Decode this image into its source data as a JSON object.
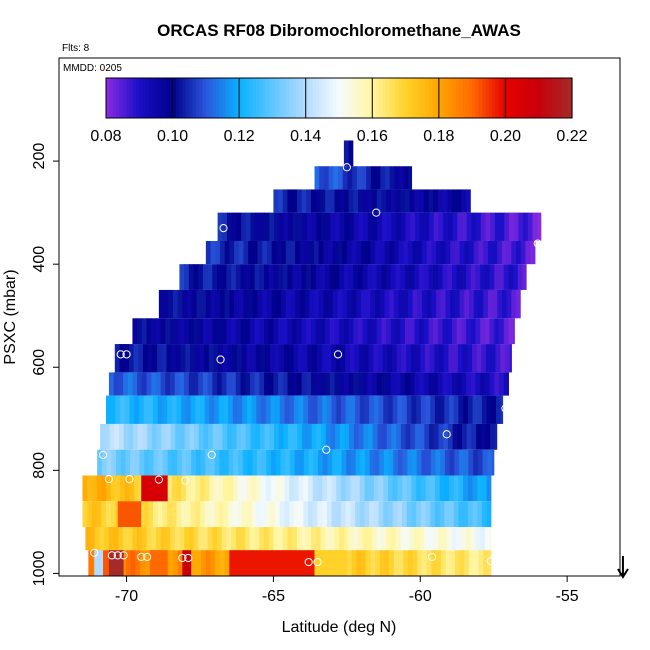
{
  "chart_data": {
    "type": "heatmap",
    "title": "ORCAS RF08 Dibromochloromethane_AWAS",
    "flights_label": "Flts: 8",
    "date_label": "MMDD: 0205",
    "xlabel": "Latitude (deg N)",
    "ylabel": "PSXC (mbar)",
    "xlim": [
      -72.3,
      -53.2
    ],
    "ylim": [
      1005,
      0
    ],
    "x_ticks": [
      -70,
      -65,
      -60,
      -55
    ],
    "x_tick_labels": [
      "-70",
      "-65",
      "-60",
      "-55"
    ],
    "y_ticks": [
      200,
      400,
      600,
      800,
      1000
    ],
    "y_tick_labels": [
      "200",
      "400",
      "600",
      "800",
      "1000"
    ],
    "colorbar": {
      "min": 0.08,
      "max": 0.22,
      "ticks": [
        0.08,
        0.1,
        0.12,
        0.14,
        0.16,
        0.18,
        0.2,
        0.22
      ],
      "tick_labels": [
        "0.08",
        "0.10",
        "0.12",
        "0.14",
        "0.16",
        "0.18",
        "0.20",
        "0.22"
      ],
      "stops": [
        {
          "v": 0.08,
          "color": "#8a2be2"
        },
        {
          "v": 0.09,
          "color": "#1a0fc8"
        },
        {
          "v": 0.1,
          "color": "#00008b"
        },
        {
          "v": 0.11,
          "color": "#2a56dc"
        },
        {
          "v": 0.12,
          "color": "#0ab0ff"
        },
        {
          "v": 0.14,
          "color": "#b4dcff"
        },
        {
          "v": 0.15,
          "color": "#f5fbff"
        },
        {
          "v": 0.16,
          "color": "#fff6a0"
        },
        {
          "v": 0.17,
          "color": "#ffd22a"
        },
        {
          "v": 0.18,
          "color": "#ffa600"
        },
        {
          "v": 0.19,
          "color": "#ff6a00"
        },
        {
          "v": 0.2,
          "color": "#e60000"
        },
        {
          "v": 0.21,
          "color": "#c8000a"
        },
        {
          "v": 0.22,
          "color": "#a52a2a"
        }
      ]
    },
    "rows": [
      {
        "p_top": 160,
        "p_bottom": 210,
        "lat_start": -62.6,
        "lat_end": -62.3,
        "v_start": 0.1,
        "v_end": 0.1
      },
      {
        "p_top": 210,
        "p_bottom": 255,
        "lat_start": -63.6,
        "lat_end": -60.3,
        "v_start": 0.112,
        "v_end": 0.098
      },
      {
        "p_top": 255,
        "p_bottom": 300,
        "lat_start": -65.0,
        "lat_end": -58.3,
        "v_start": 0.104,
        "v_end": 0.096
      },
      {
        "p_top": 300,
        "p_bottom": 355,
        "lat_start": -66.9,
        "lat_end": -55.9,
        "v_start": 0.103,
        "v_end": 0.084
      },
      {
        "p_top": 355,
        "p_bottom": 400,
        "lat_start": -67.3,
        "lat_end": -56.1,
        "v_start": 0.106,
        "v_end": 0.085
      },
      {
        "p_top": 400,
        "p_bottom": 450,
        "lat_start": -68.2,
        "lat_end": -56.4,
        "v_start": 0.104,
        "v_end": 0.087
      },
      {
        "p_top": 450,
        "p_bottom": 505,
        "lat_start": -68.9,
        "lat_end": -56.6,
        "v_start": 0.101,
        "v_end": 0.086
      },
      {
        "p_top": 505,
        "p_bottom": 555,
        "lat_start": -69.8,
        "lat_end": -56.8,
        "v_start": 0.1,
        "v_end": 0.085
      },
      {
        "p_top": 555,
        "p_bottom": 610,
        "lat_start": -70.4,
        "lat_end": -56.9,
        "v_start": 0.103,
        "v_end": 0.087
      },
      {
        "p_top": 610,
        "p_bottom": 655,
        "lat_start": -70.6,
        "lat_end": -57.0,
        "v_start": 0.112,
        "v_end": 0.09
      },
      {
        "p_top": 655,
        "p_bottom": 710,
        "lat_start": -70.7,
        "lat_end": -57.2,
        "v_start": 0.124,
        "v_end": 0.102
      },
      {
        "p_top": 710,
        "p_bottom": 760,
        "lat_start": -70.9,
        "lat_end": -57.4,
        "v_start": 0.142,
        "v_end": 0.1
      },
      {
        "p_top": 760,
        "p_bottom": 810,
        "lat_start": -71.0,
        "lat_end": -57.5,
        "v_start": 0.134,
        "v_end": 0.108
      },
      {
        "p_top": 810,
        "p_bottom": 860,
        "lat_start": -71.5,
        "lat_end": -57.6,
        "v_start": 0.18,
        "v_end": 0.116
      },
      {
        "p_top": 860,
        "p_bottom": 910,
        "lat_start": -71.5,
        "lat_end": -57.6,
        "v_start": 0.173,
        "v_end": 0.125
      },
      {
        "p_top": 910,
        "p_bottom": 955,
        "lat_start": -71.4,
        "lat_end": -57.6,
        "v_start": 0.174,
        "v_end": 0.15
      },
      {
        "p_top": 955,
        "p_bottom": 1005,
        "lat_start": -71.3,
        "lat_end": -57.6,
        "v_start": 0.19,
        "v_end": 0.162
      }
    ],
    "patches": [
      {
        "p_top": 810,
        "p_bottom": 860,
        "lat_start": -69.5,
        "lat_end": -68.6,
        "value": 0.205
      },
      {
        "p_top": 860,
        "p_bottom": 910,
        "lat_start": -70.3,
        "lat_end": -69.5,
        "value": 0.192
      },
      {
        "p_top": 955,
        "p_bottom": 1005,
        "lat_start": -70.6,
        "lat_end": -70.1,
        "value": 0.22
      },
      {
        "p_top": 955,
        "p_bottom": 1005,
        "lat_start": -68.1,
        "lat_end": -67.8,
        "value": 0.21
      },
      {
        "p_top": 955,
        "p_bottom": 1005,
        "lat_start": -69.2,
        "lat_end": -68.6,
        "value": 0.19
      },
      {
        "p_top": 955,
        "p_bottom": 1005,
        "lat_start": -66.5,
        "lat_end": -63.6,
        "value": 0.198
      },
      {
        "p_top": 955,
        "p_bottom": 1005,
        "lat_start": -71.1,
        "lat_end": -70.8,
        "value": 0.14
      },
      {
        "p_top": 955,
        "p_bottom": 1005,
        "lat_start": -63.6,
        "lat_end": -62.5,
        "value": 0.17
      }
    ],
    "sample_points": [
      {
        "lat": -62.5,
        "p": 212
      },
      {
        "lat": -61.5,
        "p": 300
      },
      {
        "lat": -66.7,
        "p": 330
      },
      {
        "lat": -56.0,
        "p": 360
      },
      {
        "lat": -70.2,
        "p": 575
      },
      {
        "lat": -70.0,
        "p": 575
      },
      {
        "lat": -66.8,
        "p": 585
      },
      {
        "lat": -62.8,
        "p": 575
      },
      {
        "lat": -57.1,
        "p": 680
      },
      {
        "lat": -59.1,
        "p": 730
      },
      {
        "lat": -70.8,
        "p": 770
      },
      {
        "lat": -67.1,
        "p": 770
      },
      {
        "lat": -63.2,
        "p": 760
      },
      {
        "lat": -70.6,
        "p": 817
      },
      {
        "lat": -69.9,
        "p": 817
      },
      {
        "lat": -68.9,
        "p": 818
      },
      {
        "lat": -68.0,
        "p": 820
      },
      {
        "lat": -71.1,
        "p": 960
      },
      {
        "lat": -70.5,
        "p": 965
      },
      {
        "lat": -70.3,
        "p": 965
      },
      {
        "lat": -70.1,
        "p": 965
      },
      {
        "lat": -69.5,
        "p": 968
      },
      {
        "lat": -69.3,
        "p": 968
      },
      {
        "lat": -68.1,
        "p": 970
      },
      {
        "lat": -67.9,
        "p": 970
      },
      {
        "lat": -63.8,
        "p": 978
      },
      {
        "lat": -63.5,
        "p": 978
      },
      {
        "lat": -59.6,
        "p": 968
      },
      {
        "lat": -57.6,
        "p": 976
      }
    ],
    "arrow_marker": {
      "lat": -53.1,
      "direction": "down"
    }
  }
}
